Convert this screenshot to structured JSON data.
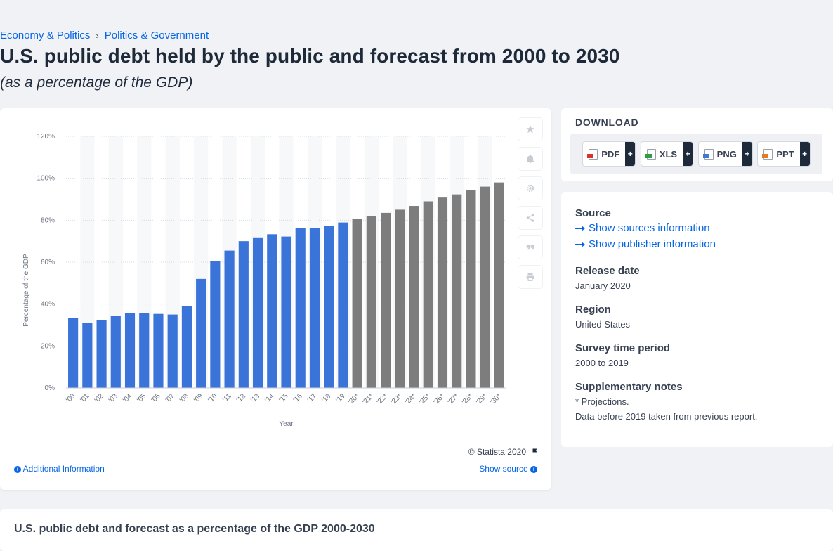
{
  "breadcrumb": {
    "item1": "Economy & Politics",
    "separator": "›",
    "item2": "Politics & Government"
  },
  "header": {
    "title": "U.S. public debt held by the public and forecast from 2000 to 2030",
    "subtitle": "(as a percentage of the GDP)"
  },
  "chart_data": {
    "type": "bar",
    "categories": [
      "'00",
      "'01",
      "'02",
      "'03",
      "'04",
      "'05",
      "'06",
      "'07",
      "'08",
      "'09",
      "'10",
      "'11",
      "'12",
      "'13",
      "'14",
      "'15",
      "'16",
      "'17",
      "'18",
      "'19",
      "'20*",
      "'21*",
      "'22*",
      "'23*",
      "'24*",
      "'25*",
      "'26*",
      "'27*",
      "'28*",
      "'29*",
      "'30*"
    ],
    "values": [
      33.5,
      31.0,
      32.4,
      34.5,
      35.6,
      35.6,
      35.3,
      35.0,
      39.1,
      52.0,
      60.6,
      65.5,
      70.0,
      71.8,
      73.3,
      72.2,
      76.2,
      76.1,
      77.4,
      78.9,
      80.5,
      82.0,
      83.5,
      85.0,
      86.8,
      89.0,
      90.8,
      92.3,
      94.5,
      96.0,
      98.0
    ],
    "forecast_from_index": 20,
    "xlabel": "Year",
    "ylabel": "Percentage of the GDP",
    "ylim": [
      0,
      120
    ],
    "yticks": [
      0,
      20,
      40,
      60,
      80,
      100,
      120
    ],
    "ytick_suffix": "%",
    "colors": {
      "actual": "#3a74d9",
      "forecast": "#7d7d7d"
    },
    "grid": true
  },
  "chart_footer": {
    "copyright": "© Statista 2020",
    "additional_info": "Additional Information",
    "show_source": "Show source"
  },
  "toolbar": {
    "icons": [
      "star-icon",
      "bell-icon",
      "gear-icon",
      "share-icon",
      "quote-icon",
      "print-icon"
    ]
  },
  "download": {
    "title": "DOWNLOAD",
    "buttons": [
      {
        "label": "PDF",
        "icon": "pdf-file-icon"
      },
      {
        "label": "XLS",
        "icon": "xls-file-icon"
      },
      {
        "label": "PNG",
        "icon": "png-file-icon"
      },
      {
        "label": "PPT",
        "icon": "ppt-file-icon"
      }
    ],
    "plus": "+"
  },
  "meta": {
    "source_heading": "Source",
    "show_sources": "Show sources information",
    "show_publisher": "Show publisher information",
    "release_heading": "Release date",
    "release_value": "January 2020",
    "region_heading": "Region",
    "region_value": "United States",
    "period_heading": "Survey time period",
    "period_value": "2000 to 2019",
    "notes_heading": "Supplementary notes",
    "notes_line1": "* Projections.",
    "notes_line2": "Data before 2019 taken from previous report."
  },
  "bottom": {
    "title": "U.S. public debt and forecast as a percentage of the GDP 2000-2030"
  }
}
